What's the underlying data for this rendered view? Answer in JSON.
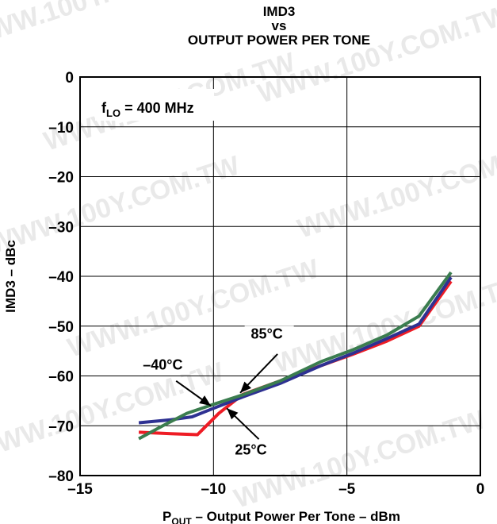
{
  "chart_data": {
    "type": "line",
    "title": "IMD3",
    "title_line2": "vs",
    "title_line3": "OUTPUT POWER PER TONE",
    "xlabel_prefix": "P",
    "xlabel_sub": "OUT",
    "xlabel_rest": " – Output Power Per Tone – dBm",
    "ylabel": "IMD3 – dBc",
    "xlim": [
      -15,
      0
    ],
    "ylim": [
      -80,
      0
    ],
    "x_ticks": [
      -15,
      -10,
      -5,
      0
    ],
    "x_tick_labels": [
      "–15",
      "–10",
      "–5",
      "0"
    ],
    "y_ticks": [
      0,
      -10,
      -20,
      -30,
      -40,
      -50,
      -60,
      -70,
      -80
    ],
    "y_tick_labels": [
      "0",
      "–10",
      "–20",
      "–30",
      "–40",
      "–50",
      "–60",
      "–70",
      "–80"
    ],
    "grid": true,
    "inset_note_prefix": "f",
    "inset_note_sub": "LO",
    "inset_note_rest": " = 400 MHz",
    "series": [
      {
        "name": "25°C",
        "color": "#ee1c25",
        "x": [
          -12.8,
          -11.6,
          -10.6,
          -9.8,
          -8.9,
          -7.5,
          -6.0,
          -4.8,
          -3.5,
          -2.3,
          -1.1
        ],
        "y": [
          -71.3,
          -71.6,
          -71.8,
          -67.5,
          -63.7,
          -61.0,
          -58.0,
          -55.7,
          -53.0,
          -50.0,
          -41.0
        ]
      },
      {
        "name": "–40°C",
        "color": "#2e3192",
        "x": [
          -12.8,
          -11.6,
          -10.8,
          -10.0,
          -8.9,
          -7.5,
          -6.0,
          -4.8,
          -3.5,
          -2.3,
          -1.1
        ],
        "y": [
          -69.4,
          -68.8,
          -68.2,
          -66.5,
          -64.2,
          -61.5,
          -58.0,
          -55.5,
          -52.5,
          -49.6,
          -40.2
        ]
      },
      {
        "name": "85°C",
        "color": "#3b7d4f",
        "x": [
          -12.8,
          -11.9,
          -11.0,
          -10.0,
          -8.9,
          -7.5,
          -6.0,
          -4.8,
          -3.5,
          -2.3,
          -1.1
        ],
        "y": [
          -72.6,
          -70.0,
          -67.5,
          -65.7,
          -63.8,
          -61.0,
          -57.2,
          -54.8,
          -51.8,
          -48.0,
          -39.2
        ]
      }
    ],
    "annotations": [
      {
        "text": "85°C",
        "x": -8.0,
        "y": -52.5
      },
      {
        "text": "–40°C",
        "x": -11.9,
        "y": -58.7
      },
      {
        "text": "25°C",
        "x": -8.6,
        "y": -75.8
      }
    ],
    "watermark": "WWW.100Y.COM.TW"
  }
}
